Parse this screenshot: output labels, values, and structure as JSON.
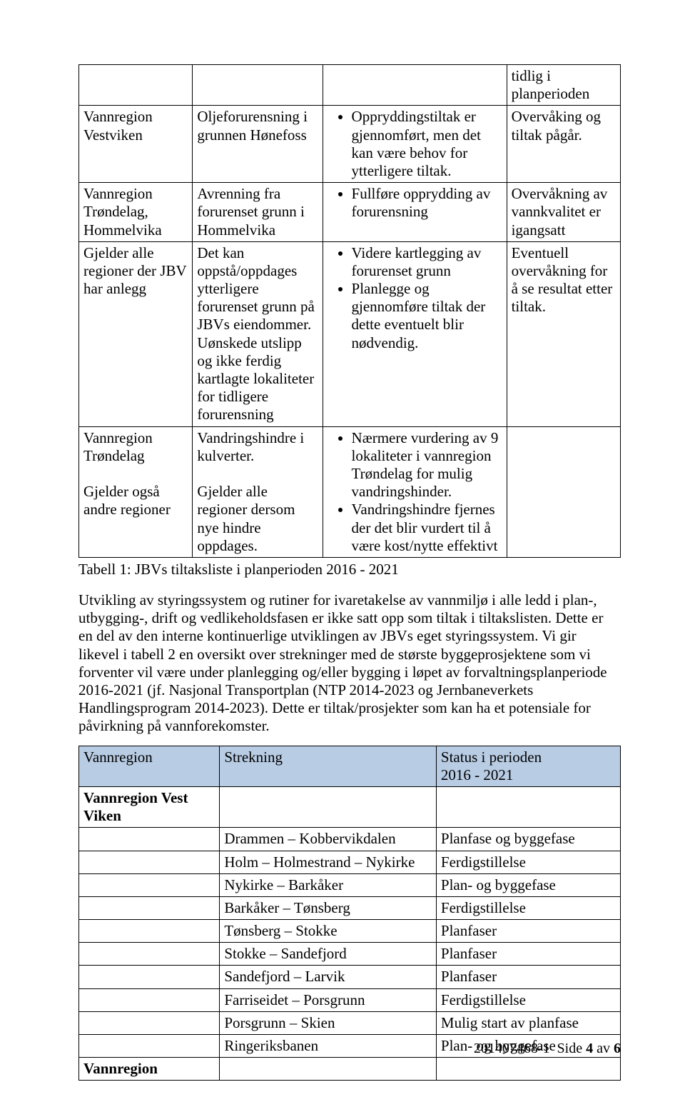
{
  "table1": {
    "rows": [
      {
        "c1": "",
        "c2": "",
        "c3_bullets": [],
        "c4": "tidlig i planperioden"
      },
      {
        "c1": "Vannregion Vestviken",
        "c2": "Oljeforurensning i grunnen Hønefoss",
        "c3_bullets": [
          "Oppryddingstiltak er gjennomført, men det kan være behov for ytterligere tiltak."
        ],
        "c4": "Overvåking og tiltak pågår."
      },
      {
        "c1": "Vannregion Trøndelag, Hommelvika",
        "c2": "Avrenning fra forurenset grunn i Hommelvika",
        "c3_bullets": [
          "Fullføre opprydding av forurensning"
        ],
        "c4": "Overvåkning av vannkvalitet er igangsatt"
      },
      {
        "c1": "Gjelder alle regioner der JBV har anlegg",
        "c2": "Det kan oppstå/oppdages ytterligere forurenset grunn på JBVs eiendommer. Uønskede utslipp og ikke ferdig kartlagte lokaliteter for tidligere forurensning",
        "c3_bullets": [
          "Videre kartlegging av forurenset grunn",
          "Planlegge og gjennomføre tiltak der dette eventuelt blir nødvendig."
        ],
        "c4": "Eventuell overvåkning for å se resultat etter tiltak."
      },
      {
        "c1_lines": [
          "Vannregion Trøndelag",
          "",
          "Gjelder også andre regioner"
        ],
        "c2_lines": [
          "Vandringshindre i kulverter.",
          "",
          "Gjelder alle regioner dersom nye hindre oppdages."
        ],
        "c3_bullets": [
          "Nærmere vurdering av 9 lokaliteter i vannregion Trøndelag for mulig vandringshinder.",
          "Vandringshindre fjernes der det blir vurdert til å være kost/nytte effektivt"
        ],
        "c4": ""
      }
    ]
  },
  "caption1": "Tabell 1: JBVs tiltaksliste i planperioden 2016 - 2021",
  "body_para": "Utvikling av styringssystem og rutiner for ivaretakelse av vannmiljø i alle ledd i plan-, utbygging-, drift og vedlikeholdsfasen er ikke satt opp som tiltak i tiltakslisten. Dette er en del av den interne kontinuerlige utviklingen av JBVs eget styringssystem. Vi gir likevel i tabell 2 en oversikt over strekninger med de største byggeprosjektene som vi forventer vil være under planlegging og/eller bygging i løpet av forvaltningsplanperiode 2016-2021 (jf. Nasjonal Transportplan (NTP 2014-2023 og Jernbaneverkets Handlingsprogram 2014-2023). Dette er tiltak/prosjekter som kan ha et potensiale for påvirkning på vannforekomster.",
  "table2": {
    "headers": [
      "Vannregion",
      "Strekning",
      "Status i perioden 2016 - 2021"
    ],
    "rows": [
      {
        "c1": "Vannregion Vest Viken",
        "c1_bold": true,
        "c2": "",
        "c3": ""
      },
      {
        "c1": "",
        "c2": "Drammen – Kobbervikdalen",
        "c3": "Planfase og byggefase"
      },
      {
        "c1": "",
        "c2": "Holm – Holmestrand – Nykirke",
        "c3": "Ferdigstillelse"
      },
      {
        "c1": "",
        "c2": "Nykirke – Barkåker",
        "c3": "Plan- og byggefase"
      },
      {
        "c1": "",
        "c2": "Barkåker – Tønsberg",
        "c3": "Ferdigstillelse"
      },
      {
        "c1": "",
        "c2": "Tønsberg – Stokke",
        "c3": "Planfaser"
      },
      {
        "c1": "",
        "c2": "Stokke – Sandefjord",
        "c3": "Planfaser"
      },
      {
        "c1": "",
        "c2": "Sandefjord – Larvik",
        "c3": "Planfaser"
      },
      {
        "c1": "",
        "c2": "Farriseidet – Porsgrunn",
        "c3": "Ferdigstillelse"
      },
      {
        "c1": "",
        "c2": "Porsgrunn – Skien",
        "c3": "Mulig start av planfase"
      },
      {
        "c1": "",
        "c2": "Ringeriksbanen",
        "c3": "Plan- og byggefase"
      },
      {
        "c1": "Vannregion",
        "c1_bold": true,
        "c2": "",
        "c3": ""
      }
    ]
  },
  "footer": {
    "doc_id": "201407468-1",
    "side_label": "Side",
    "page_current": "4",
    "av_label": "av",
    "page_total": "6"
  }
}
